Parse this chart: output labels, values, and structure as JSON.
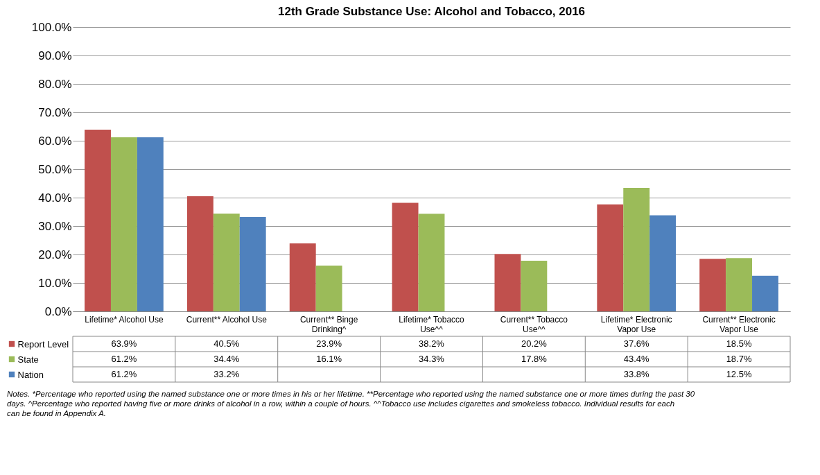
{
  "chart_data": {
    "type": "bar",
    "title": "12th Grade Substance Use: Alcohol and Tobacco, 2016",
    "categories": [
      "Lifetime* Alcohol Use",
      "Current** Alcohol Use",
      "Current** Binge Drinking^",
      "Lifetime* Tobacco Use^^",
      "Current** Tobacco Use^^",
      "Lifetime* Electronic Vapor Use",
      "Current** Electronic Vapor Use"
    ],
    "series": [
      {
        "name": "Report Level",
        "color": "#c0504d",
        "values": [
          63.9,
          40.5,
          23.9,
          38.2,
          20.2,
          37.6,
          18.5
        ],
        "value_labels": [
          "63.9%",
          "40.5%",
          "23.9%",
          "38.2%",
          "20.2%",
          "37.6%",
          "18.5%"
        ]
      },
      {
        "name": "State",
        "color": "#9bbb59",
        "values": [
          61.2,
          34.4,
          16.1,
          34.3,
          17.8,
          43.4,
          18.7
        ],
        "value_labels": [
          "61.2%",
          "34.4%",
          "16.1%",
          "34.3%",
          "17.8%",
          "43.4%",
          "18.7%"
        ]
      },
      {
        "name": "Nation",
        "color": "#4f81bd",
        "values": [
          61.2,
          33.2,
          null,
          null,
          null,
          33.8,
          12.5
        ],
        "value_labels": [
          "61.2%",
          "33.2%",
          null,
          null,
          null,
          "33.8%",
          "12.5%"
        ]
      }
    ],
    "ylim": [
      0,
      100
    ],
    "yticks": [
      {
        "value": 0,
        "label": "0.0%"
      },
      {
        "value": 10,
        "label": "10.0%"
      },
      {
        "value": 20,
        "label": "20.0%"
      },
      {
        "value": 30,
        "label": "30.0%"
      },
      {
        "value": 40,
        "label": "40.0%"
      },
      {
        "value": 50,
        "label": "50.0%"
      },
      {
        "value": 60,
        "label": "60.0%"
      },
      {
        "value": 70,
        "label": "70.0%"
      },
      {
        "value": 80,
        "label": "80.0%"
      },
      {
        "value": 90,
        "label": "90.0%"
      },
      {
        "value": 100,
        "label": "100.0%"
      }
    ],
    "grid": "y",
    "legend": "bottom left",
    "annotations": [
      "Notes. *Percentage who reported using the named substance one or more times in his or her lifetime. **Percentage who reported using the named substance one or more times during the past 30 days. ^Percentage who reported having five or more drinks of alcohol in a row, within a couple of hours. ^^Tobacco use includes cigarettes and smokeless tobacco. Individual results for each can be found in Appendix A."
    ]
  }
}
